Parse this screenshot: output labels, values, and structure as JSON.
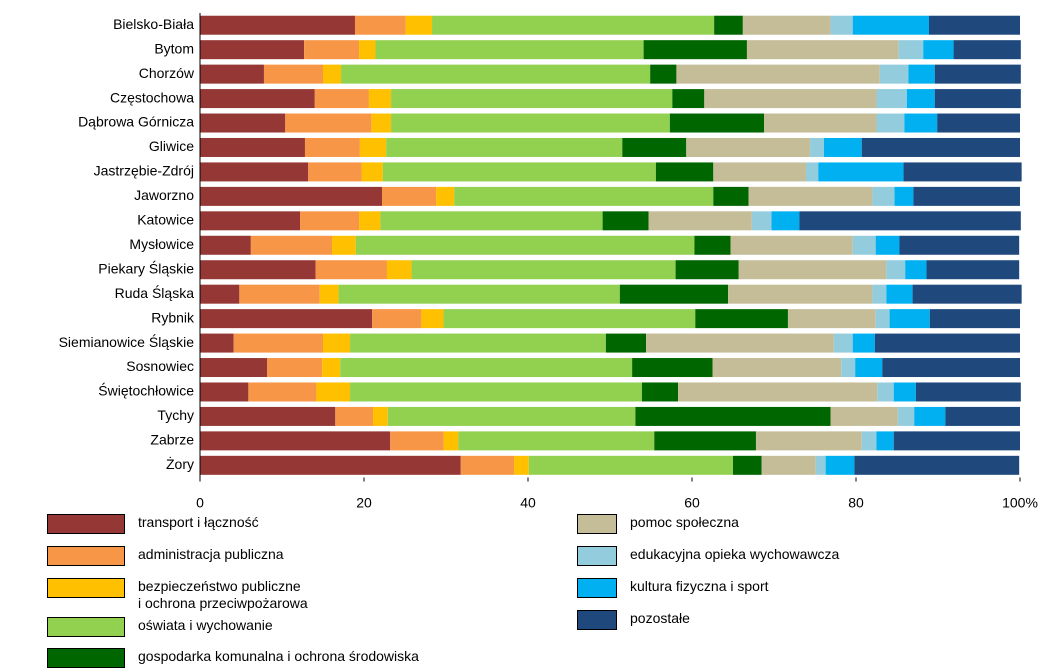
{
  "chart_data": {
    "type": "stacked-bar-horizontal",
    "categories": [
      "Bielsko-Biała",
      "Bytom",
      "Chorzów",
      "Częstochowa",
      "Dąbrowa Górnicza",
      "Gliwice",
      "Jastrzębie-Zdrój",
      "Jaworzno",
      "Katowice",
      "Mysłowice",
      "Piekary Śląskie",
      "Ruda Śląska",
      "Rybnik",
      "Siemianowice Śląskie",
      "Sosnowiec",
      "Świętochłowice",
      "Tychy",
      "Zabrze",
      "Żory"
    ],
    "series": [
      {
        "name": "transport i łączność",
        "color": "#953735",
        "values": [
          18.9,
          12.7,
          7.8,
          14.0,
          10.4,
          12.8,
          13.2,
          22.2,
          12.2,
          6.2,
          14.1,
          4.8,
          21.0,
          4.1,
          8.2,
          5.9,
          16.5,
          23.2,
          31.8
        ]
      },
      {
        "name": "administracja publiczna",
        "color": "#f79646",
        "values": [
          6.2,
          6.7,
          7.2,
          6.6,
          10.5,
          6.7,
          6.5,
          6.6,
          7.2,
          9.9,
          8.7,
          9.8,
          6.0,
          10.9,
          6.7,
          8.3,
          4.6,
          6.5,
          6.5
        ]
      },
      {
        "name": "bezpieczeństwo publiczne\ni ochrona przeciwpożarowa",
        "color": "#ffc000",
        "values": [
          3.2,
          2.0,
          2.2,
          2.7,
          2.4,
          3.2,
          2.6,
          2.2,
          2.6,
          2.9,
          3.0,
          2.3,
          2.7,
          3.3,
          2.2,
          4.1,
          1.8,
          1.8,
          1.8
        ]
      },
      {
        "name": "oświata i wychowanie",
        "color": "#92d050",
        "values": [
          34.4,
          32.7,
          37.7,
          34.3,
          34.0,
          28.8,
          33.3,
          31.6,
          27.1,
          41.3,
          32.2,
          34.3,
          30.7,
          31.2,
          35.6,
          35.6,
          30.2,
          23.9,
          24.9
        ]
      },
      {
        "name": "gospodarka komunalna i ochrona środowiska",
        "color": "#006600",
        "values": [
          3.5,
          12.6,
          3.2,
          3.9,
          11.5,
          7.8,
          7.0,
          4.3,
          5.6,
          4.4,
          7.7,
          13.2,
          11.3,
          4.9,
          9.8,
          4.4,
          23.8,
          12.4,
          3.5
        ]
      },
      {
        "name": "pomoc społeczna",
        "color": "#c4bd97",
        "values": [
          10.7,
          18.5,
          24.8,
          21.0,
          13.7,
          15.1,
          11.3,
          15.1,
          12.6,
          14.9,
          18.0,
          17.6,
          10.7,
          22.9,
          15.7,
          24.3,
          8.2,
          12.9,
          6.6
        ]
      },
      {
        "name": "edukacyjna opieka wychowawcza",
        "color": "#93cddd",
        "values": [
          2.7,
          3.0,
          3.5,
          3.7,
          3.4,
          1.7,
          1.5,
          2.7,
          2.4,
          2.8,
          2.3,
          1.7,
          1.7,
          2.3,
          1.7,
          2.0,
          2.0,
          1.8,
          1.2
        ]
      },
      {
        "name": "kultura fizyczna i sport",
        "color": "#00b0f0",
        "values": [
          9.3,
          3.7,
          3.2,
          3.4,
          4.0,
          4.6,
          10.4,
          2.3,
          3.4,
          2.9,
          2.6,
          3.2,
          4.9,
          2.7,
          3.3,
          2.7,
          3.8,
          2.1,
          3.5
        ]
      },
      {
        "name": "pozostałe",
        "color": "#1f497d",
        "values": [
          11.1,
          8.2,
          10.5,
          10.5,
          10.1,
          19.3,
          14.4,
          13.0,
          27.0,
          14.6,
          11.3,
          13.3,
          11.0,
          17.7,
          16.8,
          12.8,
          9.1,
          15.4,
          20.1
        ]
      }
    ],
    "xlim": [
      0,
      100
    ],
    "xticks": [
      0,
      20,
      40,
      60,
      80,
      {
        "value": 100,
        "label": "100%"
      }
    ]
  }
}
